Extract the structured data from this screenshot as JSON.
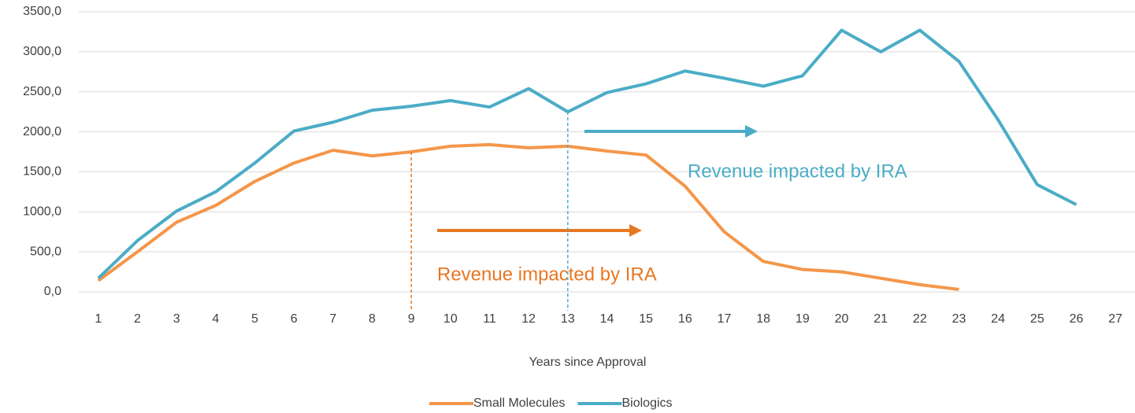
{
  "chart_data": {
    "type": "line",
    "x_label": "Years since Approval",
    "categories": [
      1,
      2,
      3,
      4,
      5,
      6,
      7,
      8,
      9,
      10,
      11,
      12,
      13,
      14,
      15,
      16,
      17,
      18,
      19,
      20,
      21,
      22,
      23,
      24,
      25,
      26,
      27
    ],
    "series": [
      {
        "name": "Small Molecules",
        "color": "#f4964a",
        "values": [
          140,
          500,
          870,
          1080,
          1380,
          1610,
          1770,
          1700,
          1750,
          1820,
          1840,
          1800,
          1820,
          1760,
          1710,
          1320,
          750,
          380,
          280,
          250,
          170,
          90,
          30,
          null,
          null,
          null,
          null
        ]
      },
      {
        "name": "Biologics",
        "color": "#4bacc6",
        "values": [
          170,
          640,
          1010,
          1250,
          1610,
          2010,
          2120,
          2270,
          2320,
          2390,
          2310,
          2540,
          2250,
          2490,
          2600,
          2760,
          2670,
          2570,
          2700,
          3270,
          3000,
          3270,
          2880,
          2150,
          1340,
          1090,
          null
        ]
      }
    ],
    "ylim": [
      0,
      3500
    ],
    "yticks": [
      {
        "value": 0,
        "label": "0,0"
      },
      {
        "value": 500,
        "label": "500,0"
      },
      {
        "value": 1000,
        "label": "1000,0"
      },
      {
        "value": 1500,
        "label": "1500,0"
      },
      {
        "value": 2000,
        "label": "2000,0"
      },
      {
        "value": 2500,
        "label": "2500,0"
      },
      {
        "value": 3000,
        "label": "3000,0"
      },
      {
        "value": 3500,
        "label": "3500,0"
      }
    ],
    "grid": true,
    "legend": "bottom",
    "annotations": [
      {
        "text": "Revenue impacted by IRA",
        "x": 9,
        "color": "#e87722"
      },
      {
        "text": "Revenue impacted by IRA",
        "x": 13,
        "color": "#4bacc6"
      }
    ]
  }
}
